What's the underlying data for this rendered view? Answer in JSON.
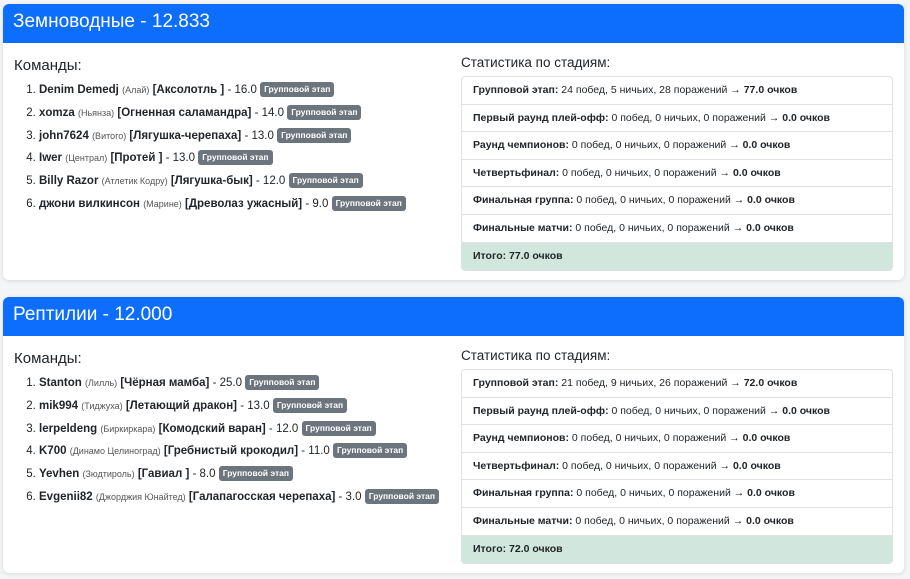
{
  "groups": [
    {
      "title": "Земноводные - 12.833",
      "teams_heading": "Команды:",
      "teams": [
        {
          "player": "Denim Demedj",
          "club": "(Алай)",
          "creature": "[Аксолотль ]",
          "score": "- 16.0",
          "badge": "Групповой этап"
        },
        {
          "player": "xomza",
          "club": "(Ньянза)",
          "creature": "[Огненная саламандра]",
          "score": "- 14.0",
          "badge": "Групповой этап"
        },
        {
          "player": "john7624",
          "club": "(Витого)",
          "creature": "[Лягушка-черепаха]",
          "score": "- 13.0",
          "badge": "Групповой этап"
        },
        {
          "player": "Iwer",
          "club": "(Централ)",
          "creature": "[Протей ]",
          "score": "- 13.0",
          "badge": "Групповой этап"
        },
        {
          "player": "Billy Razor",
          "club": "(Атлетик Кодру)",
          "creature": "[Лягушка-бык]",
          "score": "- 12.0",
          "badge": "Групповой этап"
        },
        {
          "player": "джони вилкинсон",
          "club": "(Марине)",
          "creature": "[Древолаз ужасный]",
          "score": "- 9.0",
          "badge": "Групповой этап"
        }
      ],
      "stats_heading": "Статистика по стадиям:",
      "stats": [
        {
          "stage": "Групповой этап:",
          "record": "24 побед, 5 ничьих, 28 поражений →",
          "points": "77.0 очков"
        },
        {
          "stage": "Первый раунд плей-офф:",
          "record": "0 побед, 0 ничьих, 0 поражений →",
          "points": "0.0 очков"
        },
        {
          "stage": "Раунд чемпионов:",
          "record": "0 побед, 0 ничьих, 0 поражений →",
          "points": "0.0 очков"
        },
        {
          "stage": "Четвертьфинал:",
          "record": "0 побед, 0 ничьих, 0 поражений →",
          "points": "0.0 очков"
        },
        {
          "stage": "Финальная группа:",
          "record": "0 побед, 0 ничьих, 0 поражений →",
          "points": "0.0 очков"
        },
        {
          "stage": "Финальные матчи:",
          "record": "0 побед, 0 ничьих, 0 поражений →",
          "points": "0.0 очков"
        }
      ],
      "total": "Итого: 77.0 очков"
    },
    {
      "title": "Рептилии - 12.000",
      "teams_heading": "Команды:",
      "teams": [
        {
          "player": "Stanton",
          "club": "(Лилль)",
          "creature": "[Чёрная мамба]",
          "score": "- 25.0",
          "badge": "Групповой этап"
        },
        {
          "player": "mik994",
          "club": "(Тиджуха)",
          "creature": "[Летающий дракон]",
          "score": "- 13.0",
          "badge": "Групповой этап"
        },
        {
          "player": "lerpeldeng",
          "club": "(Биркиркара)",
          "creature": "[Комодский варан]",
          "score": "- 12.0",
          "badge": "Групповой этап"
        },
        {
          "player": "K700",
          "club": "(Динамо Целиноград)",
          "creature": "[Гребнистый крокодил]",
          "score": "- 11.0",
          "badge": "Групповой этап"
        },
        {
          "player": "Yevhen",
          "club": "(Зюдтироль)",
          "creature": "[Гавиал ]",
          "score": "- 8.0",
          "badge": "Групповой этап"
        },
        {
          "player": "Evgenii82",
          "club": "(Джорджия Юнайтед)",
          "creature": "[Галапагосская черепаха]",
          "score": "- 3.0",
          "badge": "Групповой этап"
        }
      ],
      "stats_heading": "Статистика по стадиям:",
      "stats": [
        {
          "stage": "Групповой этап:",
          "record": "21 побед, 9 ничьих, 26 поражений →",
          "points": "72.0 очков"
        },
        {
          "stage": "Первый раунд плей-офф:",
          "record": "0 побед, 0 ничьих, 0 поражений →",
          "points": "0.0 очков"
        },
        {
          "stage": "Раунд чемпионов:",
          "record": "0 побед, 0 ничьих, 0 поражений →",
          "points": "0.0 очков"
        },
        {
          "stage": "Четвертьфинал:",
          "record": "0 побед, 0 ничьих, 0 поражений →",
          "points": "0.0 очков"
        },
        {
          "stage": "Финальная группа:",
          "record": "0 побед, 0 ничьих, 0 поражений →",
          "points": "0.0 очков"
        },
        {
          "stage": "Финальные матчи:",
          "record": "0 побед, 0 ничьих, 0 поражений →",
          "points": "0.0 очков"
        }
      ],
      "total": "Итого: 72.0 очков"
    }
  ],
  "colors": {
    "header": "#0d6efd",
    "badge": "#6c757d",
    "total_bg": "#d1e7dd"
  }
}
